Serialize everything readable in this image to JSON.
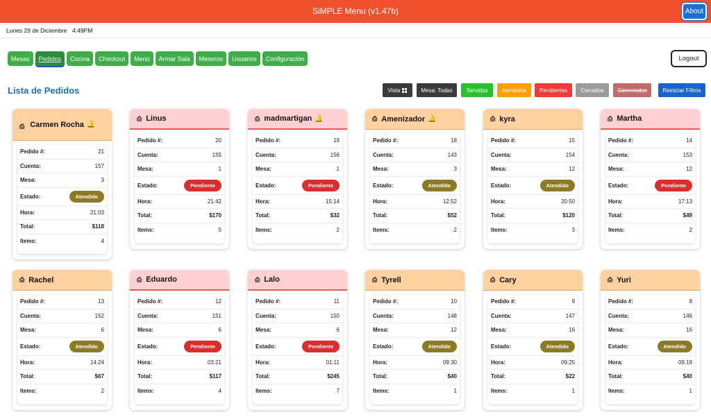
{
  "app": {
    "title": "SiMPLE Menu (v1.47b)",
    "about_label": "About"
  },
  "datebar": {
    "date": "Lunes 29 de Diciembre",
    "time": "4:49PM"
  },
  "nav": {
    "items": [
      "Mesas",
      "Pedidos",
      "Cocina",
      "Checkout",
      "Menú",
      "Armar Sala",
      "Meseros",
      "Usuarios",
      "Configuración"
    ],
    "active": "Pedidos",
    "logout_label": "Logout"
  },
  "page": {
    "title": "Lista de Pedidos"
  },
  "filters": {
    "vista": "Vista",
    "mesa": "Mesa: Todas",
    "servidos": "Servidos",
    "atendidos": "Atendidos",
    "pendientes": "Pendientes",
    "cerrados": "Cerrados",
    "cancelados": "Cancelados",
    "reiniciar": "Reiniciar Filtros"
  },
  "labels": {
    "pedido": "Pedido #:",
    "cuenta": "Cuenta:",
    "mesa": "Mesa:",
    "estado": "Estado:",
    "hora": "Hora:",
    "total": "Total:",
    "items": "Items:"
  },
  "colors": {
    "header": "#ee512c",
    "nav_green": "#3fae49",
    "atendido": "#8b7b26",
    "pendiente": "#dc2d2d",
    "title_blue": "#1f6fa6"
  },
  "orders": [
    {
      "name": "Carmen Rocha",
      "bell": true,
      "pedido": "21",
      "cuenta": "157",
      "mesa": "3",
      "estado": "Atendido",
      "hora": "21:03",
      "total": "$118",
      "items": "4"
    },
    {
      "name": "Linus",
      "bell": false,
      "pedido": "20",
      "cuenta": "155",
      "mesa": "1",
      "estado": "Pendiente",
      "hora": "21:42",
      "total": "$170",
      "items": "5"
    },
    {
      "name": "madmartigan",
      "bell": true,
      "pedido": "19",
      "cuenta": "156",
      "mesa": "1",
      "estado": "Pendiente",
      "hora": "15:14",
      "total": "$32",
      "items": "2"
    },
    {
      "name": "Amenizador",
      "bell": true,
      "pedido": "18",
      "cuenta": "143",
      "mesa": "3",
      "estado": "Atendido",
      "hora": "12:52",
      "total": "$52",
      "items": "2"
    },
    {
      "name": "kyra",
      "bell": false,
      "pedido": "15",
      "cuenta": "154",
      "mesa": "12",
      "estado": "Atendido",
      "hora": "20:50",
      "total": "$120",
      "items": "3"
    },
    {
      "name": "Martha",
      "bell": false,
      "pedido": "14",
      "cuenta": "153",
      "mesa": "12",
      "estado": "Pendiente",
      "hora": "17:13",
      "total": "$49",
      "items": "2"
    },
    {
      "name": "Rachel",
      "bell": false,
      "pedido": "13",
      "cuenta": "152",
      "mesa": "6",
      "estado": "Atendido",
      "hora": "14:24",
      "total": "$67",
      "items": "2"
    },
    {
      "name": "Eduardo",
      "bell": false,
      "pedido": "12",
      "cuenta": "151",
      "mesa": "6",
      "estado": "Pendiente",
      "hora": "03:21",
      "total": "$117",
      "items": "4"
    },
    {
      "name": "Lalo",
      "bell": false,
      "pedido": "11",
      "cuenta": "150",
      "mesa": "6",
      "estado": "Pendiente",
      "hora": "01:11",
      "total": "$245",
      "items": "7"
    },
    {
      "name": "Tyrell",
      "bell": false,
      "pedido": "10",
      "cuenta": "148",
      "mesa": "12",
      "estado": "Atendido",
      "hora": "09:30",
      "total": "$40",
      "items": "1"
    },
    {
      "name": "Cary",
      "bell": false,
      "pedido": "9",
      "cuenta": "147",
      "mesa": "16",
      "estado": "Atendido",
      "hora": "09:25",
      "total": "$22",
      "items": "1"
    },
    {
      "name": "Yuri",
      "bell": false,
      "pedido": "8",
      "cuenta": "146",
      "mesa": "16",
      "estado": "Atendido",
      "hora": "09:19",
      "total": "$40",
      "items": "1"
    }
  ]
}
